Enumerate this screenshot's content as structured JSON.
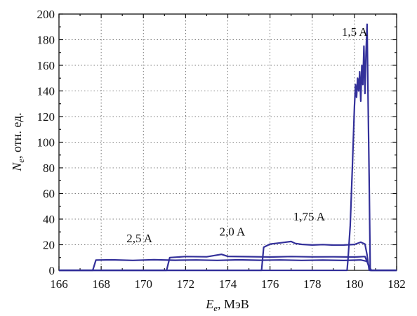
{
  "chart_data": {
    "type": "line",
    "xlabel": {
      "main": "E",
      "sub": "e",
      "rest": ", МэВ"
    },
    "ylabel": {
      "main": "N",
      "sub": "e",
      "rest": ", отн. ед."
    },
    "xlim": [
      166,
      182
    ],
    "ylim": [
      0,
      200
    ],
    "xticks": [
      "166",
      "168",
      "170",
      "172",
      "174",
      "176",
      "178",
      "180",
      "182"
    ],
    "yticks": [
      "0",
      "20",
      "40",
      "60",
      "80",
      "100",
      "120",
      "140",
      "160",
      "180",
      "200"
    ],
    "grid": true,
    "line_color": "#33309a",
    "series": [
      {
        "name": "2,5 A",
        "label_at": [
          169.2,
          22
        ],
        "points": [
          [
            166.0,
            0
          ],
          [
            167.6,
            0
          ],
          [
            167.75,
            8
          ],
          [
            168.5,
            8.2
          ],
          [
            169.5,
            7.8
          ],
          [
            170.5,
            8.3
          ],
          [
            171.5,
            7.9
          ],
          [
            172.5,
            8.1
          ],
          [
            173.5,
            7.8
          ],
          [
            174.5,
            8.2
          ],
          [
            175.5,
            7.9
          ],
          [
            176.5,
            8.1
          ],
          [
            177.5,
            7.8
          ],
          [
            178.5,
            8.0
          ],
          [
            179.5,
            7.7
          ],
          [
            180.3,
            8.1
          ],
          [
            180.6,
            7
          ],
          [
            180.75,
            0
          ],
          [
            182,
            0
          ]
        ]
      },
      {
        "name": "2,0 A",
        "label_at": [
          173.6,
          27
        ],
        "points": [
          [
            166.0,
            0
          ],
          [
            171.1,
            0
          ],
          [
            171.25,
            10
          ],
          [
            172.0,
            10.8
          ],
          [
            173.0,
            10.6
          ],
          [
            173.7,
            12.5
          ],
          [
            174.0,
            10.9
          ],
          [
            175.0,
            10.7
          ],
          [
            176.0,
            10.4
          ],
          [
            177.0,
            10.8
          ],
          [
            178.0,
            10.5
          ],
          [
            179.0,
            10.6
          ],
          [
            180.0,
            10.4
          ],
          [
            180.5,
            10.8
          ],
          [
            180.65,
            5
          ],
          [
            180.8,
            0
          ],
          [
            182,
            0
          ]
        ]
      },
      {
        "name": "1,75 A",
        "label_at": [
          177.1,
          39
        ],
        "points": [
          [
            166.0,
            0
          ],
          [
            175.6,
            0
          ],
          [
            175.7,
            18
          ],
          [
            176.0,
            20.5
          ],
          [
            176.5,
            21.5
          ],
          [
            177.0,
            22.5
          ],
          [
            177.2,
            21
          ],
          [
            177.5,
            20.3
          ],
          [
            178.0,
            19.8
          ],
          [
            178.5,
            20.1
          ],
          [
            179.0,
            19.7
          ],
          [
            179.5,
            19.8
          ],
          [
            180.0,
            20.2
          ],
          [
            180.3,
            22
          ],
          [
            180.5,
            20.5
          ],
          [
            180.6,
            12
          ],
          [
            180.7,
            0
          ],
          [
            182,
            0
          ]
        ]
      },
      {
        "name": "1,5 A",
        "label_at": [
          179.4,
          183
        ],
        "points": [
          [
            166.0,
            0
          ],
          [
            179.65,
            0
          ],
          [
            179.7,
            10
          ],
          [
            179.8,
            35
          ],
          [
            179.9,
            80
          ],
          [
            180.0,
            128
          ],
          [
            180.05,
            145
          ],
          [
            180.1,
            135
          ],
          [
            180.15,
            150
          ],
          [
            180.2,
            140
          ],
          [
            180.25,
            155
          ],
          [
            180.3,
            132
          ],
          [
            180.35,
            160
          ],
          [
            180.4,
            145
          ],
          [
            180.45,
            175
          ],
          [
            180.5,
            138
          ],
          [
            180.55,
            170
          ],
          [
            180.6,
            192
          ],
          [
            180.65,
            130
          ],
          [
            180.7,
            70
          ],
          [
            180.75,
            0
          ],
          [
            182,
            0
          ]
        ]
      }
    ]
  }
}
